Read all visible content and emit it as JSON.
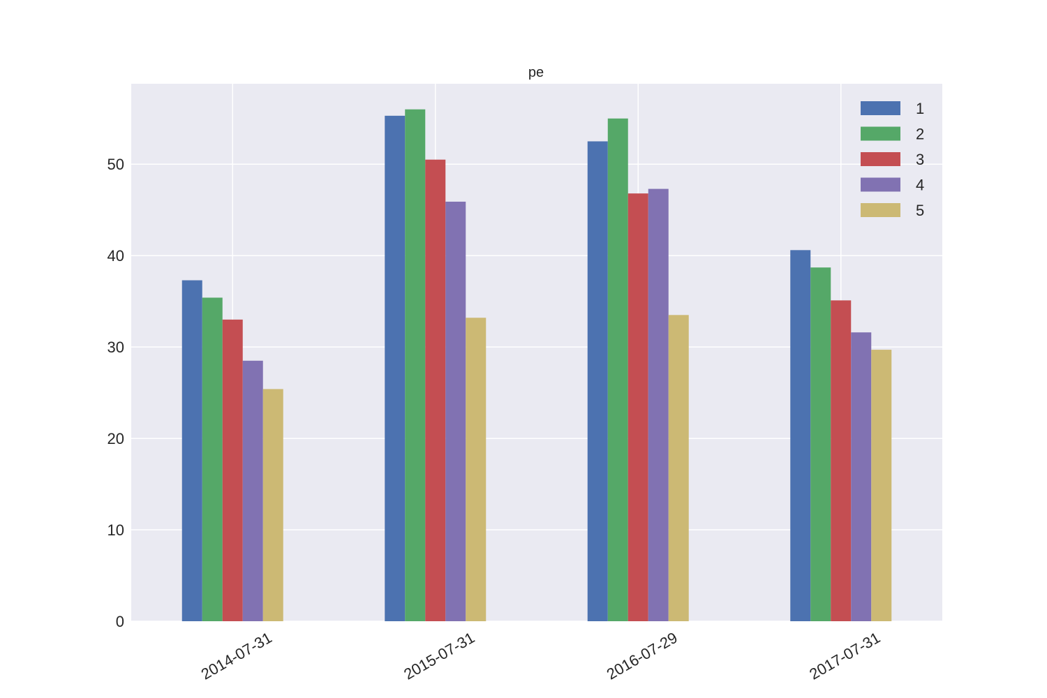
{
  "chart_data": {
    "type": "bar",
    "title": "pe",
    "xlabel": "",
    "ylabel": "",
    "categories": [
      "2014-07-31",
      "2015-07-31",
      "2016-07-29",
      "2017-07-31"
    ],
    "series": [
      {
        "name": "1",
        "color": "#4C72B0",
        "values": [
          37.3,
          55.3,
          52.5,
          40.6
        ]
      },
      {
        "name": "2",
        "color": "#55A868",
        "values": [
          35.4,
          56.0,
          55.0,
          38.7
        ]
      },
      {
        "name": "3",
        "color": "#C44E52",
        "values": [
          33.0,
          50.5,
          46.8,
          35.1
        ]
      },
      {
        "name": "4",
        "color": "#8172B2",
        "values": [
          28.5,
          45.9,
          47.3,
          31.6
        ]
      },
      {
        "name": "5",
        "color": "#CCB974",
        "values": [
          25.4,
          33.2,
          33.5,
          29.7
        ]
      }
    ],
    "ylim": [
      0,
      58.8
    ],
    "yticks": [
      0,
      10,
      20,
      30,
      40,
      50
    ],
    "grid": true,
    "legend_position": "top-right",
    "background": "#EAEAF2"
  }
}
